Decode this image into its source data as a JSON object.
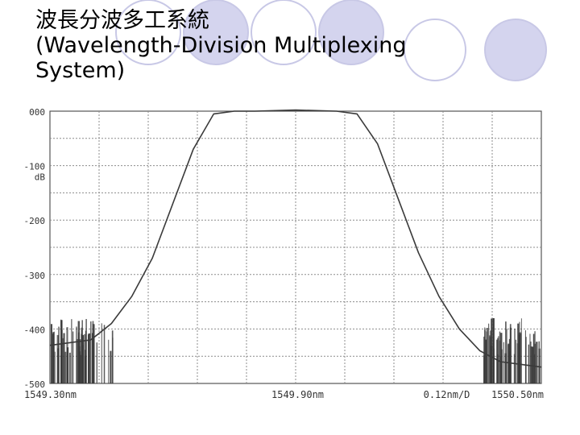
{
  "slide": {
    "title_zh": "波長分波多工系統",
    "title_en_line1": "(Wavelength-Division Multiplexing",
    "title_en_line2": "System)"
  },
  "colors": {
    "decor_circle_fill": "#d4d4ee",
    "decor_circle_stroke": "#c8c8e6",
    "grid": "#8c8c8c",
    "trace": "#3a3a3a",
    "label": "#333333"
  },
  "chart_data": {
    "type": "line",
    "title": "",
    "xlabel": "",
    "ylabel": "",
    "y_unit_label": "dB",
    "xlim": [
      1549.3,
      1550.5
    ],
    "ylim": [
      -500,
      0
    ],
    "grid": true,
    "x_tick_labels": [
      "1549.30nm",
      "1549.90nm",
      "0.12nm/D",
      "1550.50nm"
    ],
    "y_tick_labels": [
      "000",
      "-100",
      "-200",
      "-300",
      "-400",
      "-500"
    ],
    "x": [
      1549.3,
      1549.4,
      1549.45,
      1549.5,
      1549.55,
      1549.6,
      1549.65,
      1549.7,
      1549.75,
      1549.8,
      1549.9,
      1550.0,
      1550.05,
      1550.1,
      1550.15,
      1550.2,
      1550.25,
      1550.3,
      1550.35,
      1550.4,
      1550.5
    ],
    "y": [
      -430,
      -420,
      -390,
      -340,
      -270,
      -170,
      -70,
      -5,
      0,
      0,
      2,
      0,
      -5,
      -60,
      -160,
      -260,
      -340,
      -400,
      -440,
      -460,
      -470
    ]
  }
}
